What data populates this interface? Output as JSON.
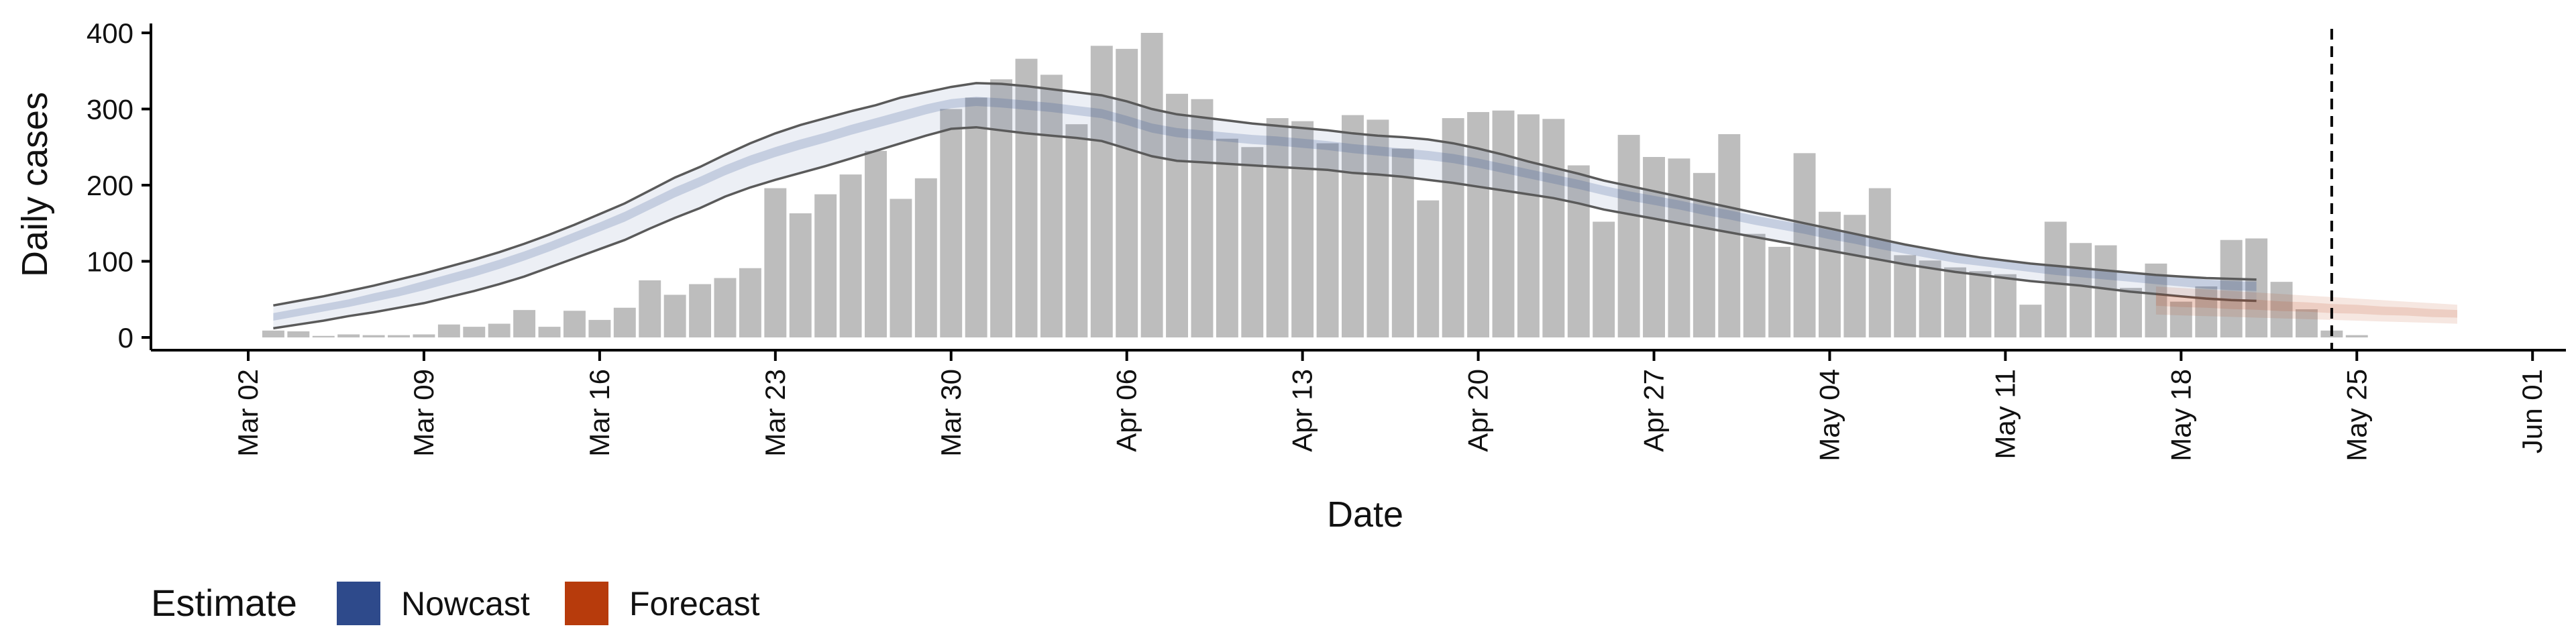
{
  "chart_data": {
    "type": "bar",
    "xlabel": "Date",
    "ylabel": "Daily cases",
    "ylim": [
      0,
      410
    ],
    "xlim": [
      "2020-03-01",
      "2020-06-01"
    ],
    "y_ticks": [
      0,
      100,
      200,
      300,
      400
    ],
    "x_ticks": [
      {
        "date": "2020-03-02",
        "label": "Mar 02"
      },
      {
        "date": "2020-03-09",
        "label": "Mar 09"
      },
      {
        "date": "2020-03-16",
        "label": "Mar 16"
      },
      {
        "date": "2020-03-23",
        "label": "Mar 23"
      },
      {
        "date": "2020-03-30",
        "label": "Mar 30"
      },
      {
        "date": "2020-04-06",
        "label": "Apr 06"
      },
      {
        "date": "2020-04-13",
        "label": "Apr 13"
      },
      {
        "date": "2020-04-20",
        "label": "Apr 20"
      },
      {
        "date": "2020-04-27",
        "label": "Apr 27"
      },
      {
        "date": "2020-05-04",
        "label": "May 04"
      },
      {
        "date": "2020-05-11",
        "label": "May 11"
      },
      {
        "date": "2020-05-18",
        "label": "May 18"
      },
      {
        "date": "2020-05-25",
        "label": "May 25"
      },
      {
        "date": "2020-06-01",
        "label": "Jun 01"
      }
    ],
    "reported_cases": {
      "start_date": "2020-03-03",
      "color": "#bdbdbd",
      "values": [
        9,
        8,
        2,
        4,
        3,
        3,
        4,
        17,
        14,
        18,
        36,
        14,
        35,
        23,
        39,
        75,
        56,
        70,
        78,
        91,
        196,
        163,
        188,
        214,
        245,
        182,
        209,
        300,
        315,
        339,
        366,
        345,
        280,
        383,
        379,
        400,
        320,
        313,
        261,
        250,
        288,
        284,
        255,
        292,
        286,
        248,
        180,
        288,
        296,
        298,
        293,
        287,
        226,
        152,
        266,
        237,
        235,
        216,
        267,
        136,
        119,
        242,
        165,
        161,
        196,
        108,
        101,
        92,
        87,
        83,
        43,
        152,
        124,
        121,
        65,
        97,
        47,
        67,
        128,
        130,
        73,
        37,
        9,
        3
      ],
      "grid": false
    },
    "nowcast": {
      "name": "Nowcast",
      "color": "#2e4a8b",
      "start_date": "2020-03-03",
      "outer_lower": [
        12,
        17,
        22,
        28,
        33,
        39,
        45,
        53,
        61,
        70,
        80,
        92,
        104,
        116,
        128,
        143,
        157,
        170,
        185,
        197,
        207,
        216,
        225,
        235,
        245,
        255,
        265,
        274,
        276,
        272,
        268,
        265,
        262,
        258,
        248,
        238,
        232,
        230,
        228,
        226,
        224,
        222,
        220,
        216,
        214,
        211,
        207,
        203,
        198,
        193,
        188,
        183,
        176,
        168,
        162,
        156,
        150,
        144,
        138,
        132,
        126,
        120,
        114,
        108,
        102,
        96,
        91,
        86,
        82,
        78,
        74,
        71,
        68,
        64,
        60,
        57,
        54,
        51,
        49,
        48
      ],
      "outer_upper": [
        42,
        48,
        54,
        61,
        68,
        76,
        84,
        93,
        102,
        112,
        123,
        135,
        148,
        162,
        176,
        193,
        210,
        224,
        240,
        255,
        268,
        279,
        288,
        297,
        305,
        315,
        322,
        329,
        334,
        333,
        330,
        326,
        322,
        318,
        310,
        300,
        293,
        289,
        285,
        281,
        278,
        275,
        272,
        268,
        265,
        263,
        260,
        255,
        248,
        240,
        231,
        223,
        215,
        206,
        199,
        192,
        185,
        178,
        171,
        164,
        157,
        150,
        143,
        136,
        129,
        122,
        116,
        110,
        105,
        101,
        97,
        94,
        91,
        88,
        85,
        82,
        80,
        78,
        77,
        76
      ],
      "inner_lower": [
        22,
        28,
        34,
        40,
        47,
        54,
        62,
        71,
        80,
        90,
        101,
        113,
        126,
        139,
        152,
        168,
        184,
        198,
        213,
        226,
        237,
        247,
        256,
        266,
        275,
        284,
        293,
        301,
        304,
        302,
        299,
        296,
        292,
        288,
        279,
        269,
        263,
        260,
        257,
        254,
        252,
        249,
        246,
        242,
        239,
        236,
        233,
        229,
        223,
        216,
        209,
        202,
        195,
        187,
        180,
        174,
        168,
        161,
        155,
        148,
        142,
        136,
        129,
        123,
        116,
        110,
        104,
        98,
        94,
        90,
        86,
        82,
        79,
        76,
        73,
        70,
        67,
        64,
        62,
        61
      ],
      "inner_upper": [
        32,
        38,
        44,
        50,
        58,
        65,
        74,
        83,
        92,
        102,
        113,
        125,
        138,
        151,
        165,
        181,
        197,
        211,
        226,
        239,
        250,
        260,
        269,
        279,
        288,
        297,
        306,
        313,
        316,
        314,
        311,
        308,
        304,
        300,
        291,
        281,
        275,
        272,
        269,
        266,
        264,
        261,
        258,
        254,
        251,
        248,
        245,
        241,
        235,
        228,
        221,
        214,
        207,
        199,
        192,
        186,
        180,
        173,
        167,
        160,
        154,
        148,
        141,
        135,
        128,
        122,
        116,
        110,
        106,
        102,
        98,
        94,
        91,
        88,
        85,
        82,
        79,
        76,
        74,
        73
      ]
    },
    "forecast": {
      "name": "Forecast",
      "color": "#b73b0c",
      "start_date": "2020-05-17",
      "lower": [
        30,
        29,
        28,
        27,
        26,
        25,
        24,
        23,
        22,
        21,
        20,
        19,
        18
      ],
      "upper": [
        67,
        65,
        63,
        61,
        59,
        57,
        55,
        53,
        51,
        49,
        47,
        45,
        43
      ],
      "median": [
        49,
        47,
        46,
        44,
        43,
        41,
        40,
        38,
        37,
        35,
        34,
        32,
        31
      ]
    },
    "vline_date": "2020-05-24",
    "legend": {
      "title": "Estimate",
      "position": "bottom-left",
      "entries": [
        {
          "name": "Nowcast",
          "color": "#2e4a8b"
        },
        {
          "name": "Forecast",
          "color": "#b73b0c"
        }
      ]
    }
  }
}
